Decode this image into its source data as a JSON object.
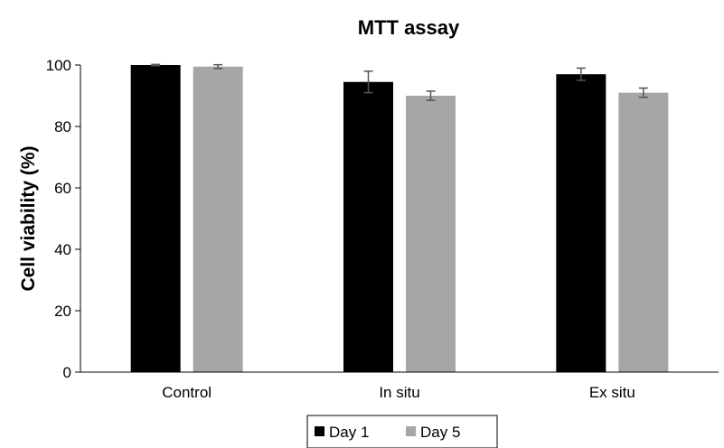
{
  "chart_data": {
    "type": "bar",
    "title": "MTT assay",
    "xlabel": "",
    "ylabel": "Cell viability (%)",
    "ylim": [
      0,
      100
    ],
    "yticks": [
      0,
      20,
      40,
      60,
      80,
      100
    ],
    "categories": [
      "Control",
      "In situ",
      "Ex situ"
    ],
    "series": [
      {
        "name": "Day 1",
        "color": "#000000",
        "values": [
          100,
          94.5,
          97
        ],
        "errors": [
          0.2,
          3.5,
          2
        ]
      },
      {
        "name": "Day 5",
        "color": "#a6a6a6",
        "values": [
          99.5,
          90,
          91
        ],
        "errors": [
          0.6,
          1.5,
          1.5
        ]
      }
    ],
    "grid": false,
    "legend_position": "bottom"
  }
}
